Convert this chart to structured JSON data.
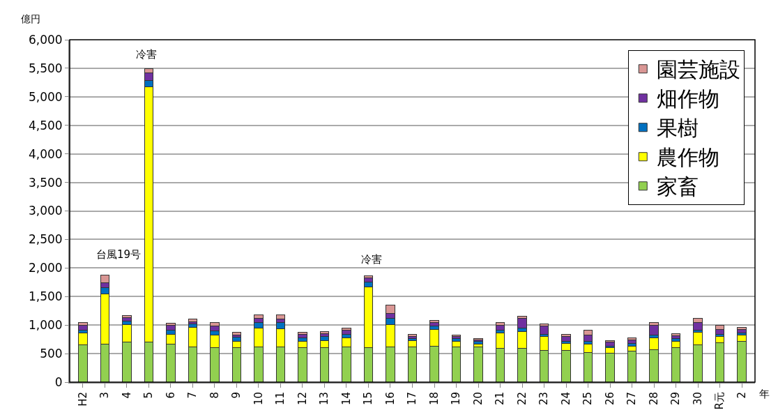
{
  "chart_data": {
    "type": "bar",
    "stacked": true,
    "ylabel": "億円",
    "xlabel": "年",
    "categories": [
      "H2",
      "3",
      "4",
      "5",
      "6",
      "7",
      "8",
      "9",
      "10",
      "11",
      "12",
      "13",
      "14",
      "15",
      "16",
      "17",
      "18",
      "19",
      "20",
      "21",
      "22",
      "23",
      "24",
      "25",
      "26",
      "27",
      "28",
      "29",
      "30",
      "R元",
      "2"
    ],
    "series": [
      {
        "name": "家畜",
        "color": "#92d050",
        "values": [
          650,
          670,
          700,
          700,
          670,
          620,
          610,
          600,
          620,
          620,
          610,
          600,
          620,
          610,
          620,
          620,
          630,
          620,
          620,
          590,
          590,
          560,
          550,
          520,
          510,
          540,
          570,
          610,
          650,
          690,
          710
        ]
      },
      {
        "name": "農作物",
        "color": "#ffff00",
        "values": [
          210,
          880,
          310,
          4480,
          170,
          340,
          220,
          110,
          330,
          320,
          100,
          130,
          160,
          1060,
          390,
          110,
          290,
          100,
          50,
          270,
          300,
          240,
          130,
          150,
          100,
          90,
          210,
          110,
          220,
          110,
          110
        ]
      },
      {
        "name": "果樹",
        "color": "#0070c0",
        "values": [
          50,
          110,
          60,
          100,
          70,
          60,
          70,
          80,
          100,
          100,
          60,
          70,
          60,
          80,
          110,
          30,
          60,
          40,
          40,
          50,
          60,
          40,
          40,
          50,
          20,
          50,
          40,
          40,
          40,
          40,
          40
        ]
      },
      {
        "name": "畑作物",
        "color": "#7030a0",
        "values": [
          80,
          80,
          60,
          140,
          90,
          40,
          80,
          40,
          70,
          60,
          70,
          50,
          70,
          80,
          80,
          40,
          60,
          40,
          30,
          90,
          170,
          140,
          80,
          100,
          70,
          60,
          180,
          50,
          130,
          80,
          60
        ]
      },
      {
        "name": "園芸施設",
        "color": "#d99694",
        "values": [
          50,
          140,
          40,
          70,
          30,
          40,
          60,
          40,
          60,
          80,
          30,
          30,
          40,
          30,
          150,
          40,
          40,
          30,
          20,
          40,
          40,
          40,
          40,
          90,
          30,
          30,
          40,
          40,
          80,
          80,
          40
        ]
      }
    ],
    "ylim": [
      0,
      6000
    ],
    "yticks": [
      {
        "value": 0,
        "label": "0"
      },
      {
        "value": 500,
        "label": "500"
      },
      {
        "value": 1000,
        "label": "1,000"
      },
      {
        "value": 1500,
        "label": "1,500"
      },
      {
        "value": 2000,
        "label": "2,000"
      },
      {
        "value": 2500,
        "label": "2,500"
      },
      {
        "value": 3000,
        "label": "3,000"
      },
      {
        "value": 3500,
        "label": "3,500"
      },
      {
        "value": 4000,
        "label": "4,000"
      },
      {
        "value": 4500,
        "label": "4,500"
      },
      {
        "value": 5000,
        "label": "5,000"
      },
      {
        "value": 5500,
        "label": "5,500"
      },
      {
        "value": 6000,
        "label": "6,000"
      }
    ],
    "grid": "y",
    "legend": "top right",
    "annotations": [
      "台風19号",
      "冷害",
      "冷害"
    ]
  }
}
